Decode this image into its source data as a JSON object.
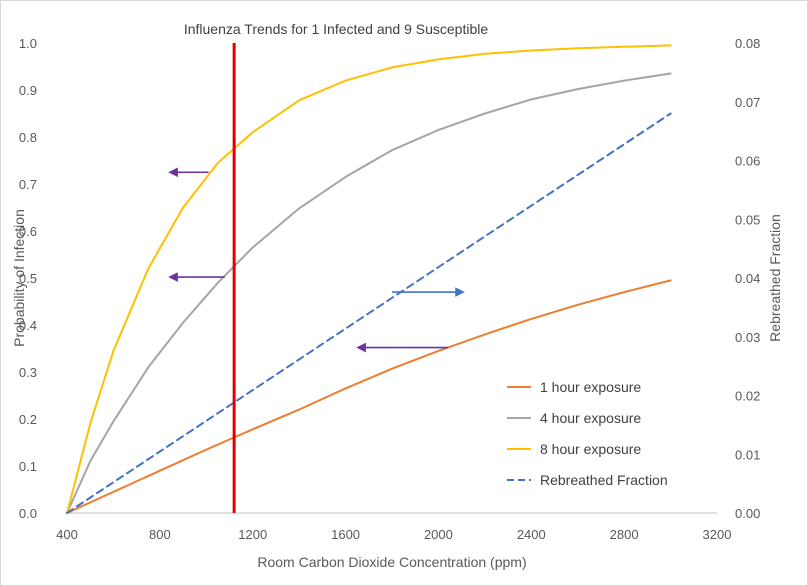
{
  "chart_data": {
    "type": "line",
    "title": "Influenza Trends for 1 Infected and 9 Susceptible",
    "xlabel": "Room Carbon Dioxide Concentration (ppm)",
    "ylabel": "Probability of Infection",
    "y2label": "Rebreathed Fraction",
    "xlim": [
      400,
      3200
    ],
    "ylim": [
      0,
      1.0
    ],
    "y2lim": [
      0,
      0.08
    ],
    "x_ticks": [
      "400",
      "800",
      "1200",
      "1600",
      "2000",
      "2400",
      "2800",
      "3200"
    ],
    "y_ticks": [
      "0.0",
      "0.1",
      "0.2",
      "0.3",
      "0.4",
      "0.5",
      "0.6",
      "0.7",
      "0.8",
      "0.9",
      "1.0"
    ],
    "y2_ticks": [
      "0.00",
      "0.01",
      "0.02",
      "0.03",
      "0.04",
      "0.05",
      "0.06",
      "0.07",
      "0.08"
    ],
    "grid": false,
    "legend_position": "bottom-right",
    "series": [
      {
        "name": "1 hour exposure",
        "axis": "left",
        "color": "#ED7D31",
        "style": "solid",
        "x": [
          400,
          600,
          800,
          1000,
          1200,
          1400,
          1600,
          1800,
          2000,
          2200,
          2400,
          2600,
          2800,
          3000
        ],
        "y": [
          0.0,
          0.045,
          0.09,
          0.135,
          0.178,
          0.22,
          0.265,
          0.307,
          0.345,
          0.38,
          0.413,
          0.443,
          0.47,
          0.495
        ]
      },
      {
        "name": "4 hour exposure",
        "axis": "left",
        "color": "#A5A5A5",
        "style": "solid",
        "x": [
          400,
          500,
          600,
          750,
          900,
          1050,
          1200,
          1400,
          1600,
          1800,
          2000,
          2200,
          2400,
          2600,
          2800,
          3000
        ],
        "y": [
          0.0,
          0.11,
          0.195,
          0.31,
          0.405,
          0.49,
          0.565,
          0.648,
          0.715,
          0.772,
          0.815,
          0.85,
          0.88,
          0.902,
          0.92,
          0.935
        ]
      },
      {
        "name": "8 hour exposure",
        "axis": "left",
        "color": "#FFC000",
        "style": "solid",
        "x": [
          400,
          500,
          600,
          750,
          900,
          1050,
          1200,
          1400,
          1600,
          1800,
          2000,
          2200,
          2400,
          2600,
          2800,
          3000
        ],
        "y": [
          0.0,
          0.19,
          0.345,
          0.52,
          0.65,
          0.745,
          0.81,
          0.878,
          0.92,
          0.948,
          0.965,
          0.977,
          0.984,
          0.989,
          0.992,
          0.995
        ]
      },
      {
        "name": "Rebreathed Fraction",
        "axis": "right",
        "color": "#4472C4",
        "style": "dashed",
        "x": [
          400,
          3000
        ],
        "y": [
          0.0,
          0.068
        ]
      }
    ],
    "annotations": [
      {
        "kind": "vertical-line",
        "x": 1120,
        "color": "#E00000"
      },
      {
        "kind": "arrow",
        "direction": "left",
        "from_x": 1010,
        "to_x": 850,
        "y": 0.725,
        "color": "#7030A0"
      },
      {
        "kind": "arrow",
        "direction": "left",
        "from_x": 1080,
        "to_x": 850,
        "y": 0.502,
        "color": "#7030A0"
      },
      {
        "kind": "arrow",
        "direction": "left",
        "from_x": 2040,
        "to_x": 1660,
        "y": 0.352,
        "color": "#7030A0"
      },
      {
        "kind": "arrow",
        "direction": "right",
        "from_x": 1800,
        "to_x": 2100,
        "y": 0.47,
        "color": "#4472C4"
      }
    ]
  }
}
